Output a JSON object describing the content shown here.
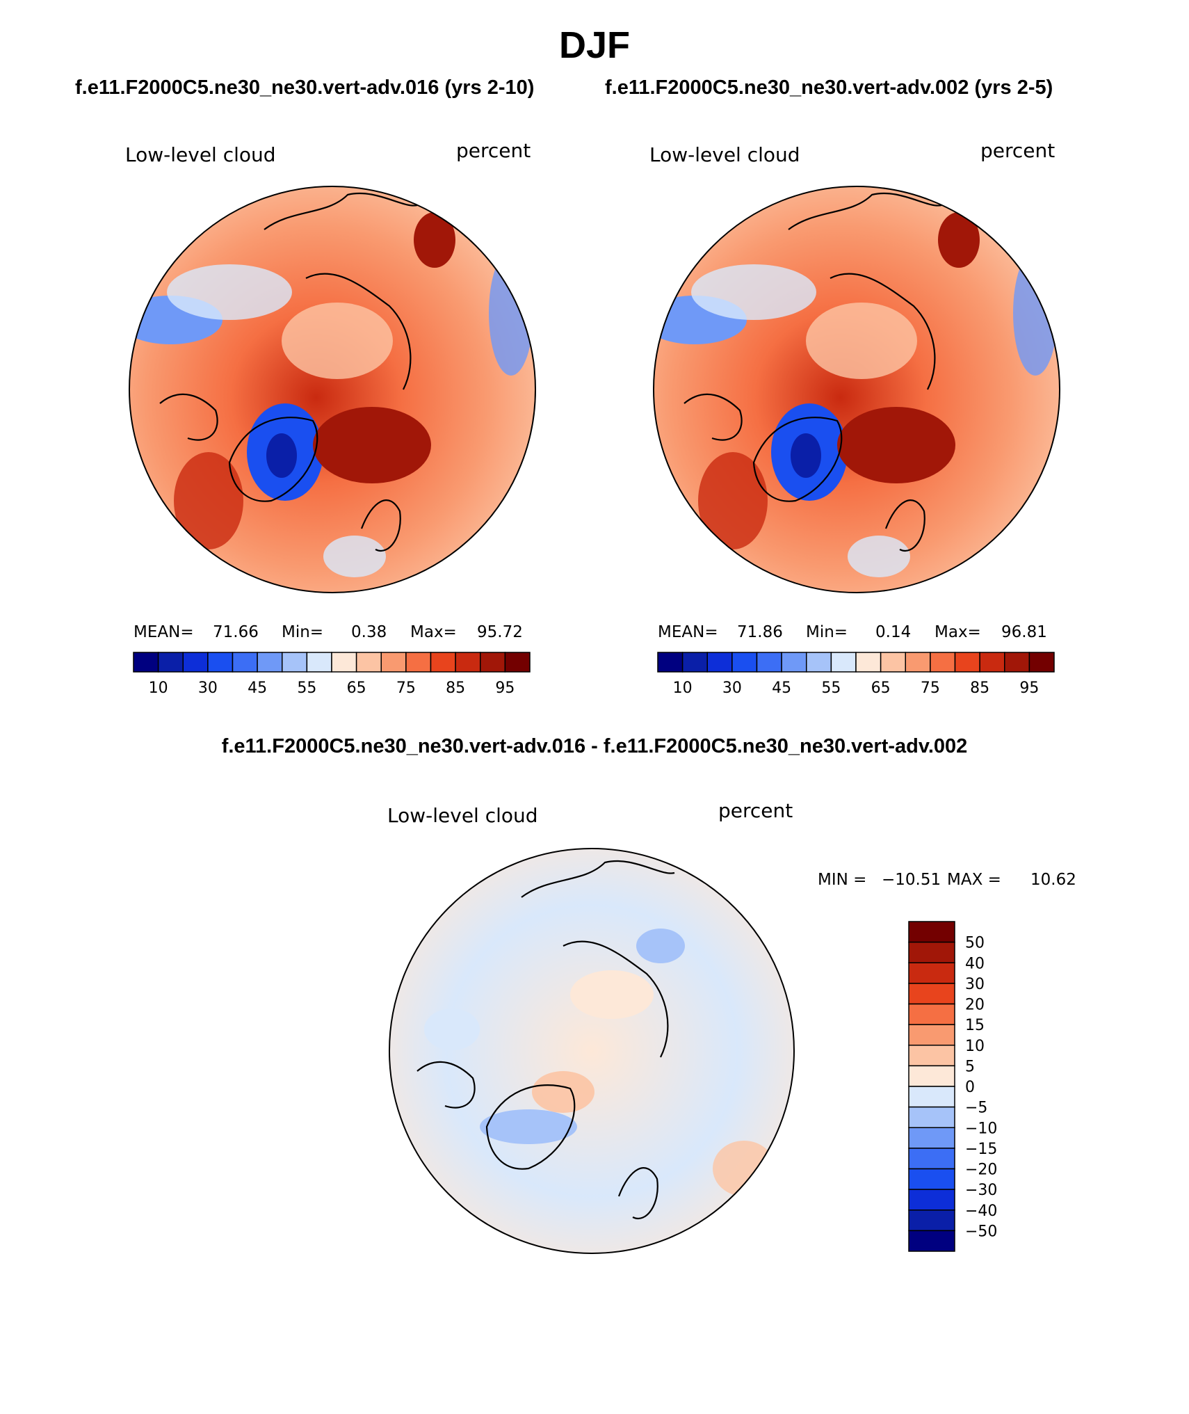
{
  "page": {
    "title": "DJF",
    "run1_title": "f.e11.F2000C5.ne30_ne30.vert-adv.016 (yrs 2-10)",
    "run2_title": "f.e11.F2000C5.ne30_ne30.vert-adv.002 (yrs 2-5)",
    "diff_title": "f.e11.F2000C5.ne30_ne30.vert-adv.016 - f.e11.F2000C5.ne30_ne30.vert-adv.002"
  },
  "chart_data": [
    {
      "type": "heatmap",
      "projection": "north-polar-stereographic",
      "variable": "Low-level cloud",
      "units": "percent",
      "run": "f.e11.F2000C5.ne30_ne30.vert-adv.016 (yrs 2-10)",
      "stats": {
        "mean_label": "MEAN=",
        "mean": "71.66",
        "min_label": "Min=",
        "min": "0.38",
        "max_label": "Max=",
        "max": "95.72"
      },
      "contour_levels": [
        10,
        20,
        30,
        40,
        45,
        50,
        55,
        60,
        65,
        70,
        75,
        80,
        85,
        90,
        95
      ],
      "tick_labels": [
        "10",
        "30",
        "45",
        "55",
        "65",
        "75",
        "85",
        "95"
      ]
    },
    {
      "type": "heatmap",
      "projection": "north-polar-stereographic",
      "variable": "Low-level cloud",
      "units": "percent",
      "run": "f.e11.F2000C5.ne30_ne30.vert-adv.002 (yrs 2-5)",
      "stats": {
        "mean_label": "MEAN=",
        "mean": "71.86",
        "min_label": "Min=",
        "min": "0.14",
        "max_label": "Max=",
        "max": "96.81"
      },
      "contour_levels": [
        10,
        20,
        30,
        40,
        45,
        50,
        55,
        60,
        65,
        70,
        75,
        80,
        85,
        90,
        95
      ],
      "tick_labels": [
        "10",
        "30",
        "45",
        "55",
        "65",
        "75",
        "85",
        "95"
      ]
    },
    {
      "type": "heatmap",
      "projection": "north-polar-stereographic",
      "variable": "Low-level cloud",
      "units": "percent",
      "run": "difference",
      "stats": {
        "min_label": "MIN =",
        "min": "−10.51",
        "max_label": "MAX =",
        "max": "10.62"
      },
      "contour_levels": [
        -50,
        -40,
        -30,
        -20,
        -15,
        -10,
        -5,
        0,
        5,
        10,
        15,
        20,
        30,
        40,
        50
      ],
      "tick_labels": [
        "50",
        "40",
        "30",
        "20",
        "15",
        "10",
        "5",
        "0",
        "−5",
        "−10",
        "−15",
        "−20",
        "−30",
        "−40",
        "−50"
      ]
    }
  ],
  "colors": {
    "scale": [
      "#000080",
      "#0a1fa8",
      "#0d2ed8",
      "#1a4ff0",
      "#3c6ef5",
      "#6f99f7",
      "#a6c3f9",
      "#d9e8fb",
      "#fde8d8",
      "#fcc4a4",
      "#f99a70",
      "#f56f43",
      "#e8441d",
      "#c92a10",
      "#a11708",
      "#730000"
    ]
  }
}
